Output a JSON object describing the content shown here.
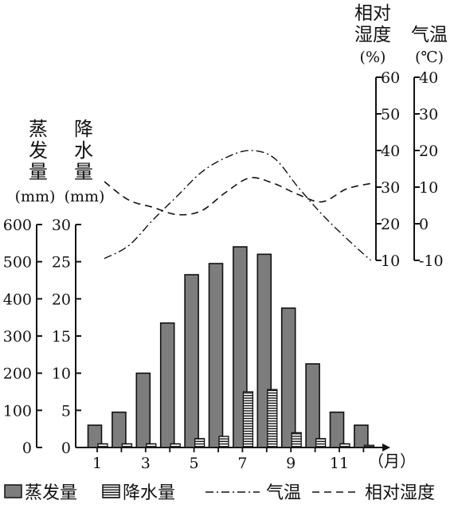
{
  "chart_data": {
    "type": "bar",
    "categories": [
      "1",
      "2",
      "3",
      "4",
      "5",
      "6",
      "7",
      "8",
      "9",
      "10",
      "11",
      "12"
    ],
    "x_tick_labels": [
      "1",
      "3",
      "5",
      "7",
      "9",
      "11"
    ],
    "x_unit": "（月）",
    "axes": {
      "evaporation": {
        "label_lines": [
          "蒸",
          "发",
          "量"
        ],
        "unit": "(mm)",
        "ylim": [
          0,
          600
        ],
        "ticks": [
          "0",
          "100",
          "200",
          "300",
          "400",
          "500",
          "600"
        ]
      },
      "precipitation": {
        "label_lines": [
          "降",
          "水",
          "量"
        ],
        "unit": "(mm)",
        "ylim": [
          0,
          30
        ],
        "ticks": [
          "0",
          "5",
          "10",
          "15",
          "20",
          "25",
          "30"
        ]
      },
      "humidity": {
        "label_lines": [
          "相对",
          "湿度"
        ],
        "unit": "(%)",
        "ylim": [
          10,
          60
        ],
        "ticks": [
          "10",
          "20",
          "30",
          "40",
          "50",
          "60"
        ]
      },
      "temperature": {
        "label_lines": [
          "气温"
        ],
        "unit": "(℃)",
        "ylim": [
          -10,
          40
        ],
        "ticks": [
          "-10",
          "0",
          "10",
          "20",
          "30",
          "40"
        ]
      }
    },
    "series": [
      {
        "name": "蒸发量",
        "kind": "bar",
        "axis": "evaporation",
        "values": [
          60,
          95,
          200,
          335,
          465,
          495,
          540,
          520,
          375,
          225,
          95,
          60
        ]
      },
      {
        "name": "降水量",
        "kind": "bar",
        "axis": "precipitation",
        "values": [
          0.5,
          0.5,
          0.5,
          0.5,
          1.2,
          1.5,
          7.5,
          7.8,
          2.0,
          1.2,
          0.5,
          0.3
        ]
      },
      {
        "name": "气温",
        "kind": "line",
        "style": "dash-dot",
        "axis": "temperature",
        "values": [
          -9.5,
          -6,
          1,
          7.5,
          14,
          18,
          20,
          18,
          10,
          2.5,
          -4,
          -10
        ]
      },
      {
        "name": "相对湿度",
        "kind": "line",
        "style": "dashed",
        "axis": "humidity",
        "values": [
          31.5,
          26.5,
          24.5,
          22.5,
          23.5,
          28.5,
          32.5,
          31,
          28,
          26,
          29.5,
          31
        ]
      }
    ],
    "legend": {
      "items": [
        {
          "label": "蒸发量",
          "symbol": "gray-box"
        },
        {
          "label": "降水量",
          "symbol": "hatched-box"
        },
        {
          "label": "气温",
          "symbol": "dash-dot"
        },
        {
          "label": "相对湿度",
          "symbol": "dashed"
        }
      ],
      "placement": "bottom"
    },
    "colors": {
      "evaporation_fill": "#7d7d7d",
      "ink": "#111111",
      "precip_fill": "#ffffff"
    }
  }
}
